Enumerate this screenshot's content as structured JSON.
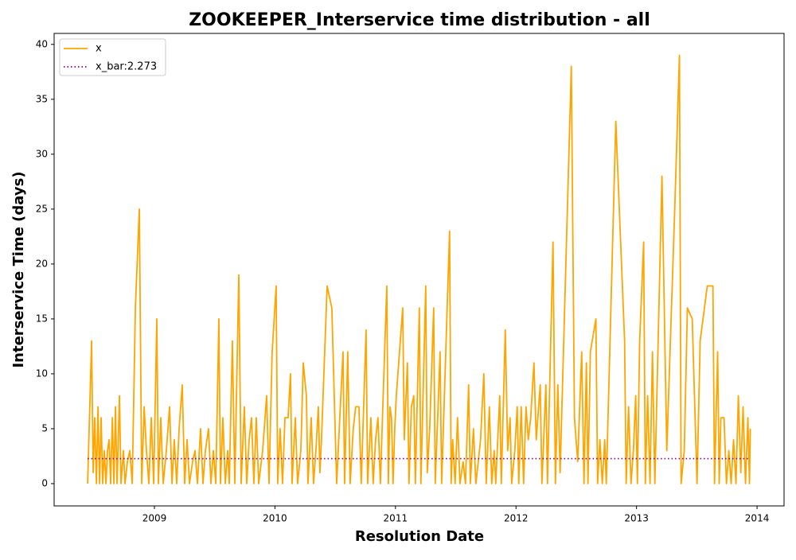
{
  "chart_data": {
    "type": "line",
    "title": "ZOOKEEPER_Interservice time distribution - all",
    "x_label": "Resolution Date",
    "y_label": "Interservice Time (days)",
    "xlim": [
      2008.168,
      2014.224
    ],
    "ylim": [
      -2.03,
      41.0
    ],
    "xticks": [
      2009,
      2010,
      2011,
      2012,
      2013,
      2014
    ],
    "yticks": [
      0,
      5,
      10,
      15,
      20,
      25,
      30,
      35,
      40
    ],
    "legend": "upper left",
    "series": [
      {
        "name": "x",
        "color": "#ffa500",
        "linestyle": "solid",
        "x": [
          2008.446,
          2008.479,
          2008.492,
          2008.505,
          2008.519,
          2008.532,
          2008.545,
          2008.558,
          2008.571,
          2008.585,
          2008.598,
          2008.611,
          2008.624,
          2008.637,
          2008.651,
          2008.664,
          2008.677,
          2008.69,
          2008.71,
          2008.723,
          2008.743,
          2008.756,
          2008.776,
          2008.796,
          2008.816,
          2008.842,
          2008.875,
          2008.895,
          2008.915,
          2008.934,
          2008.954,
          2008.974,
          2008.994,
          2009.02,
          2009.033,
          2009.053,
          2009.073,
          2009.099,
          2009.126,
          2009.146,
          2009.165,
          2009.185,
          2009.205,
          2009.231,
          2009.251,
          2009.271,
          2009.291,
          2009.317,
          2009.337,
          2009.357,
          2009.383,
          2009.403,
          2009.423,
          2009.449,
          2009.469,
          2009.489,
          2009.509,
          2009.535,
          2009.548,
          2009.568,
          2009.588,
          2009.608,
          2009.621,
          2009.647,
          2009.667,
          2009.7,
          2009.72,
          2009.746,
          2009.766,
          2009.786,
          2009.806,
          2009.825,
          2009.845,
          2009.865,
          2009.898,
          2009.931,
          2009.951,
          2009.977,
          2010.01,
          2010.023,
          2010.043,
          2010.063,
          2010.083,
          2010.109,
          2010.129,
          2010.142,
          2010.169,
          2010.188,
          2010.215,
          2010.235,
          2010.261,
          2010.274,
          2010.301,
          2010.32,
          2010.34,
          2010.36,
          2010.373,
          2010.386,
          2010.433,
          2010.472,
          2010.512,
          2010.538,
          2010.565,
          2010.578,
          2010.604,
          2010.624,
          2010.65,
          2010.67,
          2010.697,
          2010.716,
          2010.756,
          2010.769,
          2010.796,
          2010.815,
          2010.835,
          2010.855,
          2010.875,
          2010.895,
          2010.928,
          2010.941,
          2010.954,
          2010.967,
          2010.98,
          2010.994,
          2011.007,
          2011.06,
          2011.073,
          2011.099,
          2011.112,
          2011.132,
          2011.152,
          2011.165,
          2011.198,
          2011.211,
          2011.251,
          2011.264,
          2011.284,
          2011.317,
          2011.33,
          2011.37,
          2011.383,
          2011.449,
          2011.462,
          2011.475,
          2011.495,
          2011.515,
          2011.535,
          2011.561,
          2011.581,
          2011.607,
          2011.621,
          2011.647,
          2011.667,
          2011.687,
          2011.706,
          2011.733,
          2011.753,
          2011.779,
          2011.799,
          2011.819,
          2011.832,
          2011.865,
          2011.878,
          2011.911,
          2011.931,
          2011.951,
          2011.964,
          2011.99,
          2012.01,
          2012.023,
          2012.043,
          2012.063,
          2012.083,
          2012.102,
          2012.122,
          2012.149,
          2012.168,
          2012.201,
          2012.215,
          2012.248,
          2012.261,
          2012.307,
          2012.327,
          2012.347,
          2012.366,
          2012.459,
          2012.485,
          2012.512,
          2012.545,
          2012.564,
          2012.584,
          2012.597,
          2012.617,
          2012.663,
          2012.677,
          2012.696,
          2012.716,
          2012.736,
          2012.749,
          2012.828,
          2012.901,
          2012.914,
          2012.934,
          2012.954,
          2012.974,
          2012.993,
          2013.007,
          2013.026,
          2013.059,
          2013.073,
          2013.092,
          2013.112,
          2013.132,
          2013.152,
          2013.211,
          2013.251,
          2013.317,
          2013.356,
          2013.37,
          2013.396,
          2013.422,
          2013.462,
          2013.502,
          2013.528,
          2013.587,
          2013.634,
          2013.647,
          2013.673,
          2013.686,
          2013.7,
          2013.726,
          2013.746,
          2013.766,
          2013.785,
          2013.805,
          2013.825,
          2013.845,
          2013.865,
          2013.884,
          2013.904,
          2013.924,
          2013.937,
          2013.944
        ],
        "values": [
          0,
          13,
          1,
          6,
          0,
          7,
          0,
          6,
          0,
          3,
          0,
          3,
          4,
          0,
          6,
          0,
          7,
          0,
          8,
          0,
          3,
          0,
          2,
          3,
          0,
          16,
          25,
          0,
          7,
          3,
          0,
          6,
          0,
          15,
          0,
          6,
          0,
          3,
          7,
          0,
          4,
          0,
          5,
          9,
          0,
          4,
          0,
          2,
          3,
          0,
          5,
          0,
          3,
          5,
          0,
          3,
          0,
          15,
          0,
          6,
          0,
          3,
          0,
          13,
          0,
          19,
          0,
          7,
          0,
          4,
          6,
          0,
          6,
          0,
          3,
          8,
          0,
          12,
          18,
          0,
          5,
          0,
          6,
          6,
          10,
          0,
          6,
          0,
          3,
          11,
          8,
          0,
          6,
          0,
          3,
          7,
          1,
          4,
          18,
          16,
          0,
          6,
          12,
          0,
          12,
          0,
          5,
          7,
          7,
          0,
          14,
          0,
          6,
          0,
          4,
          6,
          0,
          7,
          18,
          0,
          7,
          6,
          0,
          5,
          8,
          16,
          4,
          11,
          0,
          7,
          8,
          0,
          16,
          0,
          18,
          1,
          5,
          16,
          0,
          12,
          0,
          23,
          0,
          4,
          0,
          6,
          0,
          2,
          0,
          9,
          0,
          5,
          0,
          2,
          4,
          10,
          0,
          7,
          0,
          3,
          0,
          8,
          0,
          14,
          3,
          6,
          0,
          3,
          7,
          0,
          7,
          0,
          7,
          4,
          6,
          11,
          4,
          9,
          0,
          9,
          0,
          22,
          0,
          9,
          1,
          38,
          6,
          2,
          12,
          0,
          11,
          0,
          12,
          15,
          0,
          4,
          0,
          4,
          0,
          33,
          13,
          0,
          7,
          0,
          3,
          8,
          0,
          13,
          22,
          0,
          8,
          0,
          12,
          0,
          28,
          3,
          25,
          39,
          0,
          3,
          16,
          15,
          0,
          13,
          18,
          18,
          0,
          12,
          0,
          6,
          6,
          0,
          3,
          0,
          4,
          0,
          8,
          1,
          7,
          0,
          6,
          0,
          5
        ]
      },
      {
        "name": "x_bar:2.273",
        "color": "#800080",
        "linestyle": "dotted",
        "x": [
          2008.446,
          2013.944
        ],
        "values": [
          2.273,
          2.273
        ]
      }
    ]
  }
}
